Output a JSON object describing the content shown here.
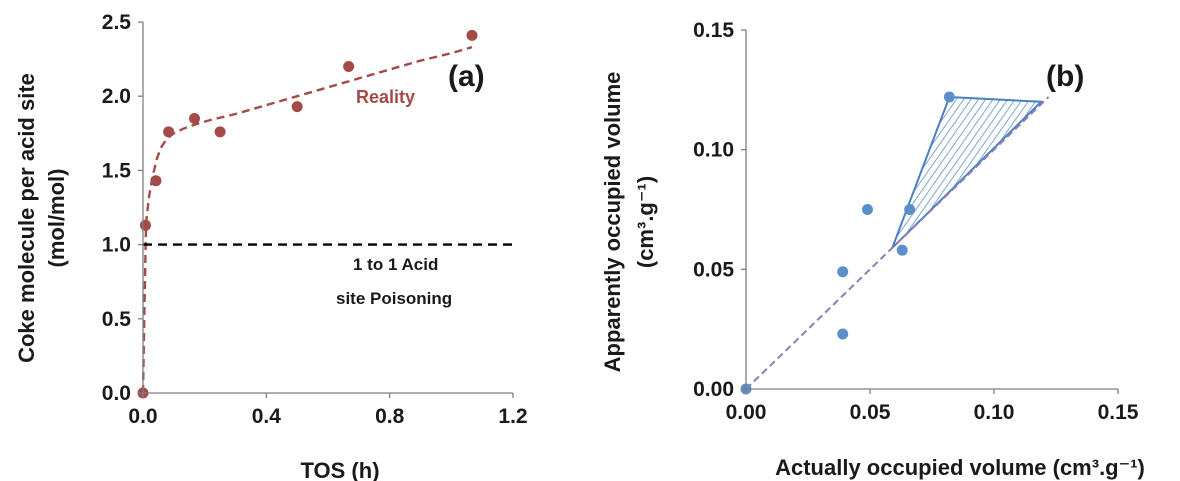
{
  "chart_data": [
    {
      "type": "scatter",
      "panel_label": "(a)",
      "xlabel": "TOS (h)",
      "ylabel_line1": "Coke molecule per acid site",
      "ylabel_line2": "(mol/mol)",
      "xlim": [
        0,
        1.2
      ],
      "ylim": [
        0,
        2.5
      ],
      "xticks": [
        "0.0",
        "0.4",
        "0.8",
        "1.2"
      ],
      "xtick_values": [
        0,
        0.4,
        0.8,
        1.2
      ],
      "yticks": [
        "0.0",
        "0.5",
        "1.0",
        "1.5",
        "2.0",
        "2.5"
      ],
      "ytick_values": [
        0,
        0.5,
        1.0,
        1.5,
        2.0,
        2.5
      ],
      "grid": false,
      "marker_color": "#a34b47",
      "series": [
        {
          "kind": "points",
          "x": [
            0,
            0.008,
            0.042,
            0.083,
            0.167,
            0.25,
            0.5,
            0.667,
            1.067
          ],
          "y": [
            0,
            1.13,
            1.43,
            1.76,
            1.85,
            1.76,
            1.93,
            2.2,
            2.41
          ]
        },
        {
          "kind": "fit",
          "color": "#a34b47",
          "style": "dashed",
          "label": "Reality",
          "x": [
            0,
            0.005,
            0.01,
            0.02,
            0.03,
            0.045,
            0.06,
            0.08,
            0.1,
            0.13,
            0.17,
            0.22,
            0.3,
            0.4,
            0.5,
            0.6,
            0.7,
            0.8,
            0.9,
            1.0,
            1.067
          ],
          "y": [
            0,
            0.6,
            1.15,
            1.33,
            1.45,
            1.58,
            1.66,
            1.72,
            1.75,
            1.78,
            1.81,
            1.84,
            1.88,
            1.94,
            2.0,
            2.06,
            2.12,
            2.18,
            2.24,
            2.29,
            2.33
          ]
        },
        {
          "kind": "reference",
          "color": "#000000",
          "style": "dashed",
          "y_value": 1.0,
          "label_line1": "1 to 1 Acid",
          "label_line2": "site Poisoning"
        }
      ]
    },
    {
      "type": "scatter",
      "panel_label": "(b)",
      "xlabel": "Actually occupied volume (cm³.g⁻¹)",
      "ylabel_line1": "Apparently occupied volume",
      "ylabel_line2": "(cm³.g⁻¹)",
      "xlim": [
        0,
        0.15
      ],
      "ylim": [
        0,
        0.15
      ],
      "xticks": [
        "0.00",
        "0.05",
        "0.10",
        "0.15"
      ],
      "xtick_values": [
        0,
        0.05,
        0.1,
        0.15
      ],
      "yticks": [
        "0.00",
        "0.05",
        "0.10",
        "0.15"
      ],
      "ytick_values": [
        0,
        0.05,
        0.1,
        0.15
      ],
      "grid": false,
      "marker_color": "#5b8fc9",
      "series": [
        {
          "kind": "points",
          "x": [
            0,
            0.039,
            0.039,
            0.049,
            0.063,
            0.066,
            0.082
          ],
          "y": [
            0,
            0.023,
            0.049,
            0.075,
            0.058,
            0.075,
            0.122
          ]
        },
        {
          "kind": "parity",
          "color": "#8c7fb5",
          "style": "dashed",
          "x": [
            0,
            0.122
          ],
          "y": [
            0,
            0.122
          ]
        },
        {
          "kind": "shaded_region",
          "color": "#4a7fc0",
          "vertices": [
            [
              0.059,
              0.059
            ],
            [
              0.082,
              0.122
            ],
            [
              0.119,
              0.12
            ]
          ]
        }
      ]
    }
  ]
}
